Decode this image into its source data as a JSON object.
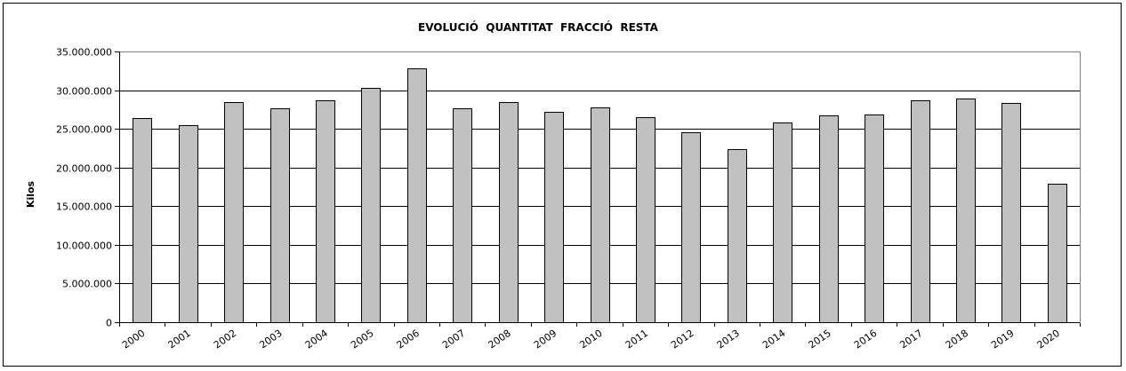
{
  "chart_data": {
    "type": "bar",
    "title": "EVOLUCIÓ  QUANTITAT  FRACCIÓ  RESTA",
    "xlabel": "",
    "ylabel": "Kilos",
    "ylim": [
      0,
      35000000
    ],
    "yticks": [
      0,
      5000000,
      10000000,
      15000000,
      20000000,
      25000000,
      30000000,
      35000000
    ],
    "ytick_labels": [
      "0",
      "5.000.000",
      "10.000.000",
      "15.000.000",
      "20.000.000",
      "25.000.000",
      "30.000.000",
      "35.000.000"
    ],
    "categories": [
      "2000",
      "2001",
      "2002",
      "2003",
      "2004",
      "2005",
      "2006",
      "2007",
      "2008",
      "2009",
      "2010",
      "2011",
      "2012",
      "2013",
      "2014",
      "2015",
      "2016",
      "2017",
      "2018",
      "2019",
      "2020"
    ],
    "values": [
      26400000,
      25500000,
      28500000,
      27700000,
      28700000,
      30300000,
      32800000,
      27700000,
      28500000,
      27200000,
      27800000,
      26500000,
      24600000,
      22400000,
      25800000,
      26700000,
      26800000,
      28700000,
      28900000,
      28400000,
      17900000
    ],
    "grid": true,
    "bar_color": "#c0c0c0",
    "edge_color": "#000000"
  }
}
